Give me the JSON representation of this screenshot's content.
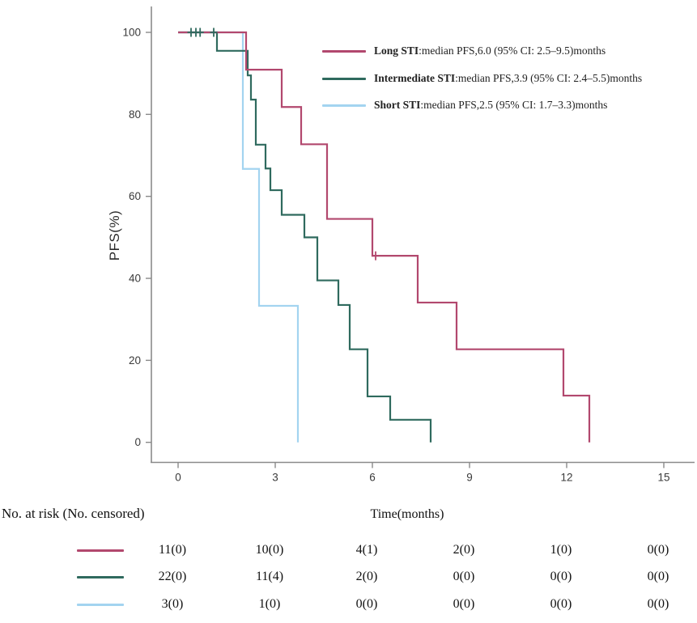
{
  "figure": {
    "background": "#ffffff"
  },
  "colors": {
    "long": "#b2486e",
    "intermediate": "#2f6a5e",
    "short": "#a3d4f0",
    "axis": "#8a8a8a",
    "tick_text": "#3a3a3a"
  },
  "legend": {
    "items": [
      {
        "name": "Long STI",
        "text": ":median PFS,6.0  (95% CI: 2.5–9.5)months",
        "color": "#b2486e"
      },
      {
        "name": "Intermediate STI",
        "text": ":median PFS,3.9 (95% CI: 2.4–5.5)months",
        "color": "#2f6a5e"
      },
      {
        "name": "Short STI",
        "text": ":median PFS,2.5  (95% CI: 1.7–3.3)months",
        "color": "#a3d4f0"
      }
    ]
  },
  "chart_data": {
    "type": "line",
    "subtype": "kaplan-meier-step",
    "title": "",
    "xlabel": "Time(months)",
    "ylabel": "PFS(%)",
    "xlim": [
      0,
      15.8
    ],
    "ylim": [
      0,
      100
    ],
    "x_ticks": [
      0,
      3,
      6,
      9,
      12,
      15
    ],
    "y_ticks": [
      0,
      20,
      40,
      60,
      80,
      100
    ],
    "grid": false,
    "legend_position": "upper-right-inside",
    "series": [
      {
        "name": "Long STI",
        "color": "#b2486e",
        "median_pfs": 6.0,
        "ci95": "2.5–9.5",
        "steps": [
          [
            0,
            100
          ],
          [
            2.1,
            90.9
          ],
          [
            3.2,
            81.8
          ],
          [
            3.8,
            72.7
          ],
          [
            4.6,
            54.5
          ],
          [
            6.0,
            45.5
          ],
          [
            7.4,
            34.1
          ],
          [
            8.6,
            22.7
          ],
          [
            11.9,
            11.4
          ],
          [
            12.7,
            0
          ]
        ],
        "censors": [
          [
            6.1,
            45.5
          ]
        ]
      },
      {
        "name": "Intermediate STI",
        "color": "#2f6a5e",
        "median_pfs": 3.9,
        "ci95": "2.4–5.5",
        "steps": [
          [
            0,
            100
          ],
          [
            1.2,
            95.5
          ],
          [
            2.15,
            89.5
          ],
          [
            2.25,
            83.6
          ],
          [
            2.4,
            72.6
          ],
          [
            2.7,
            66.8
          ],
          [
            2.85,
            61.5
          ],
          [
            3.2,
            55.5
          ],
          [
            3.9,
            50.0
          ],
          [
            4.3,
            39.5
          ],
          [
            4.95,
            33.5
          ],
          [
            5.3,
            22.7
          ],
          [
            5.85,
            11.2
          ],
          [
            6.55,
            5.5
          ],
          [
            7.8,
            0
          ]
        ],
        "censors": [
          [
            0.4,
            100
          ],
          [
            0.55,
            100
          ],
          [
            0.68,
            100
          ],
          [
            1.1,
            100
          ]
        ]
      },
      {
        "name": "Short STI",
        "color": "#a3d4f0",
        "median_pfs": 2.5,
        "ci95": "1.7–3.3",
        "steps": [
          [
            0,
            100
          ],
          [
            2.0,
            66.7
          ],
          [
            2.5,
            33.3
          ],
          [
            3.7,
            0
          ]
        ],
        "censors": []
      }
    ]
  },
  "risk_table": {
    "header": "No. at risk (No. censored)",
    "times": [
      0,
      3,
      6,
      9,
      12,
      15
    ],
    "rows": [
      {
        "name": "Long STI",
        "color": "#b2486e",
        "values": [
          "11(0)",
          "10(0)",
          "4(1)",
          "2(0)",
          "1(0)",
          "0(0)"
        ]
      },
      {
        "name": "Intermediate STI",
        "color": "#2f6a5e",
        "values": [
          "22(0)",
          "11(4)",
          "2(0)",
          "0(0)",
          "0(0)",
          "0(0)"
        ]
      },
      {
        "name": "Short STI",
        "color": "#a3d4f0",
        "values": [
          "3(0)",
          "1(0)",
          "0(0)",
          "0(0)",
          "0(0)",
          "0(0)"
        ]
      }
    ]
  }
}
